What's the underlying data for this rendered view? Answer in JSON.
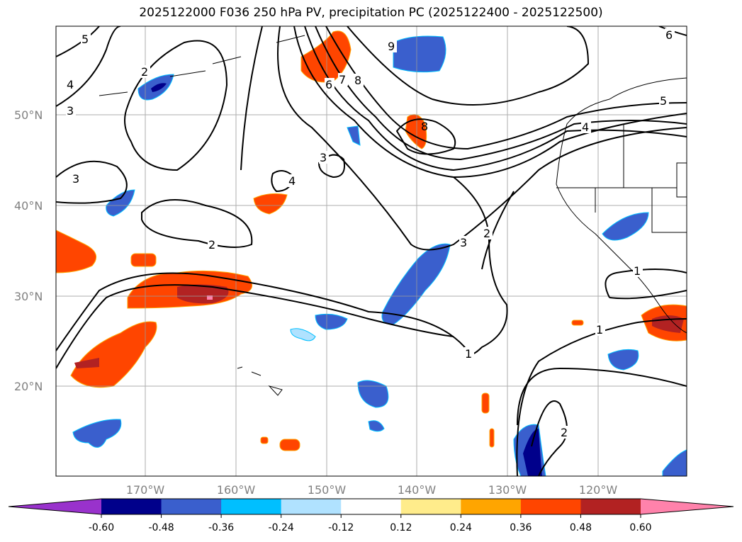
{
  "title": "2025122000 F036 250 hPa PV, precipitation PC (2025122400 - 2025122500)",
  "chart_data": {
    "type": "map-contour",
    "title": "2025122000 F036 250 hPa PV, precipitation PC (2025122400 - 2025122500)",
    "extent": {
      "lon": [
        -180,
        -110
      ],
      "lat": [
        10,
        60
      ]
    },
    "lon_ticks": [
      {
        "value": -170,
        "label": "170°W"
      },
      {
        "value": -160,
        "label": "160°W"
      },
      {
        "value": -150,
        "label": "150°W"
      },
      {
        "value": -140,
        "label": "140°W"
      },
      {
        "value": -130,
        "label": "130°W"
      },
      {
        "value": -120,
        "label": "120°W"
      }
    ],
    "lat_ticks": [
      {
        "value": 50,
        "label": "50°N"
      },
      {
        "value": 40,
        "label": "40°N"
      },
      {
        "value": 30,
        "label": "30°N"
      },
      {
        "value": 20,
        "label": "20°N"
      }
    ],
    "grid": true,
    "colorbar": {
      "placement": "bottom",
      "extend": "both",
      "colors": [
        "#9932cc",
        "#00008b",
        "#3a5fcd",
        "#00bfff",
        "#b0e2ff",
        "#ffffff",
        "#ffec8b",
        "#ffa500",
        "#ff4500",
        "#b22222",
        "#ff82ab"
      ],
      "ticks": [
        "-0.60",
        "-0.48",
        "-0.36",
        "-0.24",
        "-0.12",
        "0.12",
        "0.24",
        "0.36",
        "0.48",
        "0.60"
      ]
    },
    "pv_contour_labels": [
      "5",
      "4",
      "3",
      "2",
      "3",
      "2",
      "9",
      "6",
      "7",
      "8",
      "8",
      "3",
      "4",
      "3",
      "2",
      "1",
      "1",
      "1",
      "2",
      "5",
      "6",
      "4"
    ]
  }
}
